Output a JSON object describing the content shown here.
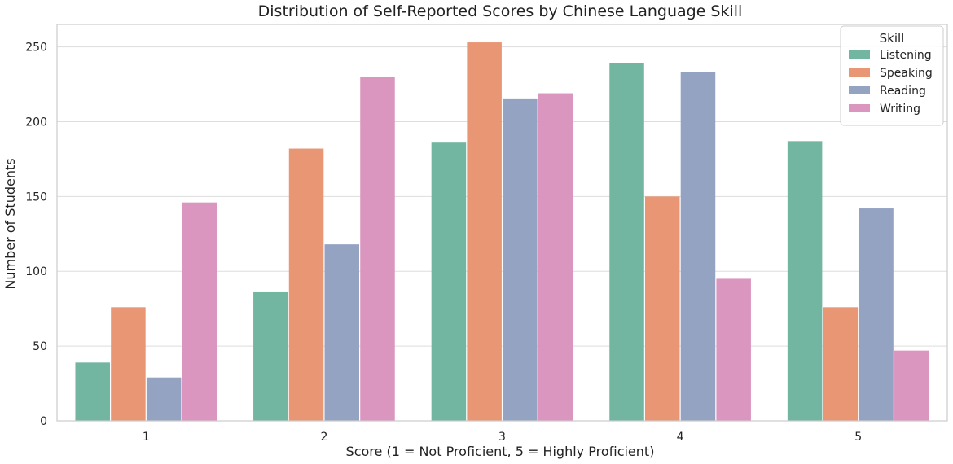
{
  "chart_data": {
    "type": "bar",
    "title": "Distribution of Self-Reported Scores by Chinese Language Skill",
    "xlabel": "Score (1 = Not Proficient, 5 = Highly Proficient)",
    "ylabel": "Number of Students",
    "categories": [
      "1",
      "2",
      "3",
      "4",
      "5"
    ],
    "ylim": [
      0,
      265
    ],
    "yticks": [
      0,
      50,
      100,
      150,
      200,
      250
    ],
    "grid": true,
    "legend": {
      "title": "Skill",
      "placement": "top-right"
    },
    "series": [
      {
        "name": "Listening",
        "color": "#72b6a1",
        "values": [
          39,
          86,
          186,
          239,
          187
        ]
      },
      {
        "name": "Speaking",
        "color": "#e99675",
        "values": [
          76,
          182,
          253,
          150,
          76
        ]
      },
      {
        "name": "Reading",
        "color": "#95a3c3",
        "values": [
          29,
          118,
          215,
          233,
          142
        ]
      },
      {
        "name": "Writing",
        "color": "#db96c0",
        "values": [
          146,
          230,
          219,
          95,
          47
        ]
      }
    ]
  }
}
